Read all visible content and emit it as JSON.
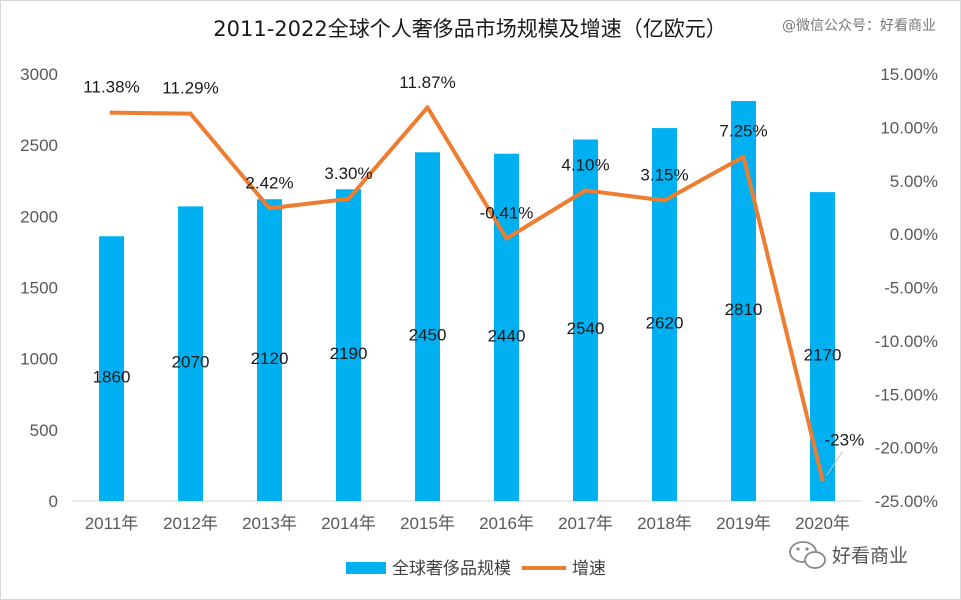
{
  "chart_data": {
    "type": "bar",
    "title": "2011-2022全球个人奢侈品市场规模及增速（亿欧元）",
    "categories": [
      "2011年",
      "2012年",
      "2013年",
      "2014年",
      "2015年",
      "2016年",
      "2017年",
      "2018年",
      "2019年",
      "2020年"
    ],
    "series": [
      {
        "name": "全球奢侈品规模",
        "type": "bar",
        "axis": "left",
        "color": "#00b0f0",
        "values": [
          1860,
          2070,
          2120,
          2190,
          2450,
          2440,
          2540,
          2620,
          2810,
          2170
        ],
        "labels": [
          "1860",
          "2070",
          "2120",
          "2190",
          "2450",
          "2440",
          "2540",
          "2620",
          "2810",
          "2170"
        ]
      },
      {
        "name": "增速",
        "type": "line",
        "axis": "right",
        "color": "#ed7d31",
        "values": [
          11.38,
          11.29,
          2.42,
          3.3,
          11.87,
          -0.41,
          4.1,
          3.15,
          7.25,
          -23
        ],
        "labels": [
          "11.38%",
          "11.29%",
          "2.42%",
          "3.30%",
          "11.87%",
          "-0.41%",
          "4.10%",
          "3.15%",
          "7.25%",
          "-23%"
        ]
      }
    ],
    "y_left": {
      "range": [
        0,
        3000
      ],
      "ticks": [
        "0",
        "500",
        "1000",
        "1500",
        "2000",
        "2500",
        "3000"
      ]
    },
    "y_right": {
      "range": [
        -25,
        15
      ],
      "ticks": [
        "-25.00%",
        "-20.00%",
        "-15.00%",
        "-10.00%",
        "-5.00%",
        "0.00%",
        "5.00%",
        "10.00%",
        "15.00%"
      ]
    },
    "grid": false,
    "legend_position": "bottom"
  },
  "watermark_small": "@微信公众号：好看商业",
  "watermark_large": "好看商业"
}
